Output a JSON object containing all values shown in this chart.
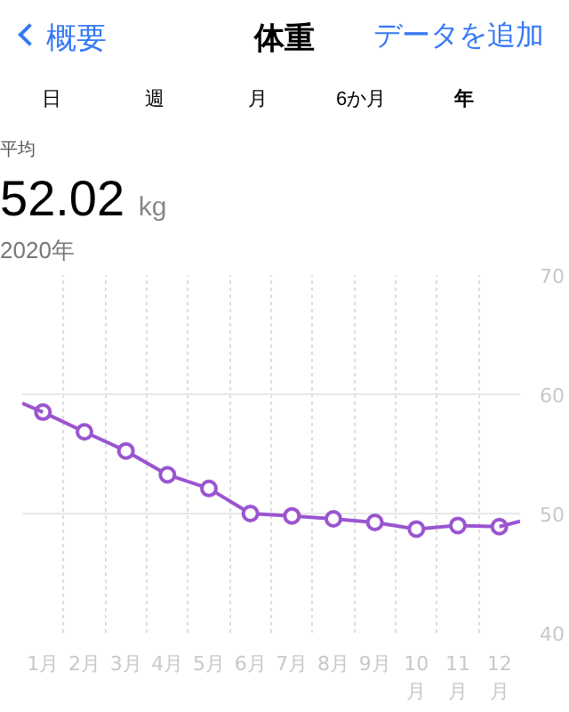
{
  "chart_data": {
    "type": "line",
    "title": "体重",
    "subtitle": "2020年",
    "annotations": [
      "概要",
      "データを追加",
      "日",
      "週",
      "月",
      "6か月",
      "年",
      "平均",
      "52.02 kg"
    ],
    "x": [
      0.5,
      1.5,
      2.5,
      3.5,
      4.5,
      5.5,
      6.5,
      7.5,
      8.5,
      9.5,
      10.5,
      11.5
    ],
    "series": [
      {
        "color": "#9a55d0",
        "values": [
          58.5,
          56.85,
          55.25,
          53.25,
          52.1,
          50.0,
          49.8,
          49.55,
          49.25,
          48.7,
          49.0,
          48.9
        ],
        "marker": "circle"
      },
      {
        "color": "#9a55d0",
        "x": [
          0,
          0.5
        ],
        "values": [
          59.25,
          58.5
        ],
        "marker": "none"
      },
      {
        "color": "#9a55d0",
        "x": [
          11.5,
          12
        ],
        "values": [
          48.9,
          49.35
        ],
        "marker": "none"
      }
    ],
    "xlim": [
      0,
      12
    ],
    "xticks": [
      {
        "value": 0.5,
        "label": "1月"
      },
      {
        "value": 1.5,
        "label": "2月"
      },
      {
        "value": 2.5,
        "label": "3月"
      },
      {
        "value": 3.5,
        "label": "4月"
      },
      {
        "value": 4.5,
        "label": "5月"
      },
      {
        "value": 5.5,
        "label": "6月"
      },
      {
        "value": 6.5,
        "label": "7月"
      },
      {
        "value": 7.5,
        "label": "8月"
      },
      {
        "value": 8.5,
        "label": "9月"
      },
      {
        "value": 9.5,
        "label": "10\n月"
      },
      {
        "value": 10.5,
        "label": "11\n月"
      },
      {
        "value": 11.5,
        "label": "12\n月"
      },
      {
        "value": 1,
        "label": null
      },
      {
        "value": 2,
        "label": null
      },
      {
        "value": 3,
        "label": null
      },
      {
        "value": 4,
        "label": null
      },
      {
        "value": 5,
        "label": null
      },
      {
        "value": 6,
        "label": null
      },
      {
        "value": 7,
        "label": null
      },
      {
        "value": 8,
        "label": null
      },
      {
        "value": 9,
        "label": null
      },
      {
        "value": 10,
        "label": null
      },
      {
        "value": 11,
        "label": null
      }
    ],
    "ylim": [
      40,
      70
    ],
    "yticks": [
      40,
      50,
      60,
      70
    ],
    "grid": true,
    "line_style": "solid"
  }
}
